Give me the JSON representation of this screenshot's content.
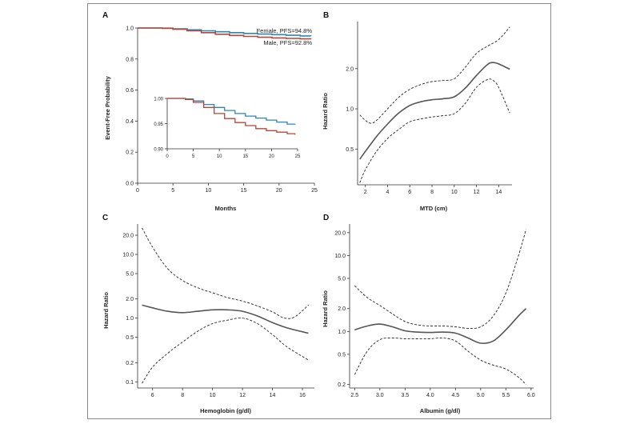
{
  "figure": {
    "panel_letters": [
      "A",
      "B",
      "C",
      "D"
    ]
  },
  "colors": {
    "female": "#2e86b5",
    "male": "#b5473a",
    "curve": "#555555",
    "ci": "#222222",
    "axis": "#333333"
  },
  "chart_data": [
    {
      "id": "A",
      "type": "line",
      "title": "",
      "xlabel": "Months",
      "ylabel": "Event-Free Probability",
      "xlim": [
        0,
        25
      ],
      "ylim": [
        0,
        1.0
      ],
      "xticks": [
        0,
        5,
        10,
        15,
        20,
        25
      ],
      "xtick_labels": [
        "0",
        "5",
        "10",
        "15",
        "20",
        "25"
      ],
      "yticks": [
        0,
        0.2,
        0.4,
        0.6,
        0.8,
        1.0
      ],
      "ytick_labels": [
        "0.0",
        "0.2",
        "0.4",
        "0.6",
        "0.8",
        "1.0"
      ],
      "series": [
        {
          "name": "Female, PFS=94.8%",
          "x": [
            0,
            2,
            3.5,
            5,
            7,
            9,
            11,
            13,
            15,
            17,
            19,
            21,
            23,
            24.5
          ],
          "y": [
            1.0,
            1.0,
            0.999,
            0.995,
            0.988,
            0.982,
            0.976,
            0.97,
            0.965,
            0.961,
            0.957,
            0.953,
            0.949,
            0.948
          ]
        },
        {
          "name": "Male, PFS=92.8%",
          "x": [
            0,
            2,
            3.5,
            5,
            7,
            9,
            11,
            13,
            15,
            17,
            19,
            21,
            23,
            24.5
          ],
          "y": [
            1.0,
            1.0,
            0.998,
            0.992,
            0.982,
            0.97,
            0.96,
            0.952,
            0.946,
            0.94,
            0.936,
            0.933,
            0.93,
            0.928
          ]
        }
      ],
      "inset": {
        "xlim": [
          0,
          25
        ],
        "ylim": [
          0.9,
          1.0
        ],
        "xticks": [
          0,
          5,
          10,
          15,
          20,
          25
        ],
        "xtick_labels": [
          "0",
          "5",
          "10",
          "15",
          "20",
          "25"
        ],
        "yticks": [
          0.9,
          0.95,
          1.0
        ],
        "ytick_labels": [
          "0.90",
          "0.95",
          "1.00"
        ]
      }
    },
    {
      "id": "B",
      "type": "line",
      "xlabel": "MTD (cm)",
      "ylabel": "Hazard Ratio",
      "yscale": "log",
      "xlim": [
        1.3,
        15.2
      ],
      "ylim": [
        0.27,
        4.5
      ],
      "xticks": [
        2,
        4,
        6,
        8,
        10,
        12,
        14
      ],
      "xtick_labels": [
        "2",
        "4",
        "6",
        "8",
        "10",
        "12",
        "14"
      ],
      "yticks": [
        0.5,
        1.0,
        2.0
      ],
      "ytick_labels": [
        "0.5",
        "1.0",
        "2.0"
      ],
      "series": [
        {
          "name": "estimate",
          "x": [
            1.5,
            2,
            3,
            4,
            5,
            6,
            7,
            8,
            9,
            10,
            11,
            12,
            13,
            13.5,
            14,
            15
          ],
          "y": [
            0.42,
            0.48,
            0.62,
            0.77,
            0.93,
            1.06,
            1.13,
            1.17,
            1.19,
            1.23,
            1.43,
            1.78,
            2.15,
            2.22,
            2.17,
            1.98
          ]
        },
        {
          "name": "upper",
          "x": [
            1.5,
            2,
            2.5,
            3,
            4,
            5,
            6,
            7,
            8,
            9,
            10,
            11,
            12,
            13,
            14,
            15
          ],
          "y": [
            0.9,
            0.82,
            0.78,
            0.82,
            1.0,
            1.22,
            1.4,
            1.52,
            1.6,
            1.63,
            1.68,
            2.05,
            2.6,
            2.95,
            3.3,
            4.1
          ]
        },
        {
          "name": "lower",
          "x": [
            1.5,
            2,
            3,
            4,
            5,
            6,
            7,
            8,
            9,
            10,
            11,
            12,
            13,
            13.5,
            14,
            15
          ],
          "y": [
            0.28,
            0.35,
            0.48,
            0.6,
            0.7,
            0.8,
            0.84,
            0.87,
            0.89,
            0.92,
            1.1,
            1.45,
            1.66,
            1.63,
            1.45,
            0.93
          ]
        }
      ]
    },
    {
      "id": "C",
      "type": "line",
      "xlabel": "Hemoglobin (g/dl)",
      "ylabel": "Hazard Ratio",
      "yscale": "log",
      "xlim": [
        5.0,
        16.8
      ],
      "ylim": [
        0.08,
        30
      ],
      "xticks": [
        6,
        8,
        10,
        12,
        14,
        16
      ],
      "xtick_labels": [
        "6",
        "8",
        "10",
        "12",
        "14",
        "16"
      ],
      "yticks": [
        0.1,
        0.2,
        0.5,
        1.0,
        2.0,
        5.0,
        10.0,
        20.0
      ],
      "ytick_labels": [
        "0.1",
        "0.2",
        "0.5",
        "1.0",
        "2.0",
        "5.0",
        "10.0",
        "20.0"
      ],
      "series": [
        {
          "name": "estimate",
          "x": [
            5.3,
            6,
            7,
            8,
            9,
            10,
            11,
            12,
            13,
            14,
            15,
            16.4
          ],
          "y": [
            1.6,
            1.45,
            1.28,
            1.22,
            1.28,
            1.35,
            1.35,
            1.28,
            1.08,
            0.85,
            0.7,
            0.58
          ]
        },
        {
          "name": "upper",
          "x": [
            5.3,
            6,
            7,
            8,
            9,
            10,
            11,
            12,
            13,
            14,
            14.8,
            15.5,
            16.4
          ],
          "y": [
            26,
            13,
            6,
            3.9,
            3.0,
            2.5,
            2.1,
            1.85,
            1.55,
            1.25,
            1.0,
            1.05,
            1.6
          ]
        },
        {
          "name": "lower",
          "x": [
            5.3,
            6,
            7,
            8,
            9,
            10,
            11,
            12,
            13,
            14,
            15,
            16.4
          ],
          "y": [
            0.095,
            0.17,
            0.28,
            0.42,
            0.62,
            0.82,
            0.93,
            1.0,
            0.82,
            0.55,
            0.35,
            0.22
          ]
        }
      ]
    },
    {
      "id": "D",
      "type": "line",
      "xlabel": "Albumin (g/dl)",
      "ylabel": "Hazard Ratio",
      "yscale": "log",
      "xlim": [
        2.4,
        6.05
      ],
      "ylim": [
        0.18,
        26
      ],
      "xticks": [
        2.5,
        3.0,
        3.5,
        4.0,
        4.5,
        5.0,
        5.5,
        6.0
      ],
      "xtick_labels": [
        "2.5",
        "3.0",
        "3.5",
        "4.0",
        "4.5",
        "5.0",
        "5.5",
        "6.0"
      ],
      "yticks": [
        0.2,
        0.5,
        1.0,
        2.0,
        5.0,
        10.0,
        20.0
      ],
      "ytick_labels": [
        "0.2",
        "0.5",
        "1.0",
        "2.0",
        "5.0",
        "10.0",
        "20.0"
      ],
      "series": [
        {
          "name": "estimate",
          "x": [
            2.5,
            2.75,
            3.0,
            3.25,
            3.5,
            3.75,
            4.0,
            4.25,
            4.5,
            4.75,
            5.0,
            5.25,
            5.5,
            5.75,
            5.9
          ],
          "y": [
            1.05,
            1.18,
            1.25,
            1.15,
            1.02,
            0.98,
            0.97,
            0.98,
            0.95,
            0.82,
            0.7,
            0.75,
            1.05,
            1.6,
            2.0
          ]
        },
        {
          "name": "upper",
          "x": [
            2.5,
            2.75,
            3.0,
            3.25,
            3.5,
            3.75,
            4.0,
            4.25,
            4.5,
            4.75,
            5.0,
            5.25,
            5.5,
            5.75,
            5.9
          ],
          "y": [
            4.0,
            2.8,
            2.2,
            1.7,
            1.35,
            1.22,
            1.18,
            1.18,
            1.15,
            1.1,
            1.15,
            1.6,
            3.2,
            10.0,
            22.0
          ]
        },
        {
          "name": "lower",
          "x": [
            2.5,
            2.75,
            3.0,
            3.25,
            3.5,
            3.75,
            4.0,
            4.25,
            4.5,
            4.75,
            5.0,
            5.25,
            5.5,
            5.75,
            5.9
          ],
          "y": [
            0.27,
            0.55,
            0.78,
            0.82,
            0.8,
            0.8,
            0.8,
            0.82,
            0.75,
            0.55,
            0.42,
            0.36,
            0.32,
            0.25,
            0.2
          ]
        }
      ]
    }
  ]
}
